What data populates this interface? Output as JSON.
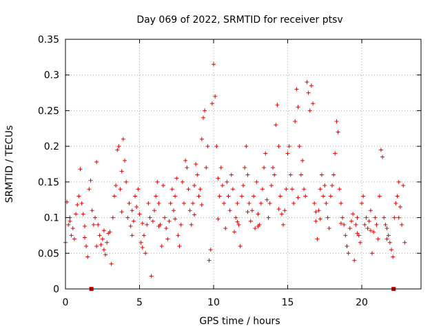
{
  "chart_data": {
    "type": "scatter",
    "title": "Day 069 of 2022, SRMTID for receiver ptsv",
    "xlabel": "GPS time / hours",
    "ylabel": "SRMTID / TECUs",
    "xlim": [
      0,
      24
    ],
    "ylim": [
      0,
      0.35
    ],
    "x_ticks": [
      0,
      5,
      10,
      15,
      20
    ],
    "x_tick_labels": [
      "0",
      "5",
      "10",
      "15",
      "20"
    ],
    "y_ticks": [
      0,
      0.05,
      0.1,
      0.15,
      0.2,
      0.25,
      0.3,
      0.35
    ],
    "y_tick_labels": [
      "0",
      "0.05",
      "0.1",
      "0.15",
      "0.2",
      "0.25",
      "0.3",
      "0.35"
    ],
    "grid": true,
    "marker": "+",
    "color": "#e00000",
    "series": [
      {
        "name": "SRMTID",
        "points": [
          [
            0.0,
            0.065
          ],
          [
            0.1,
            0.122
          ],
          [
            0.2,
            0.09
          ],
          [
            0.3,
            0.1
          ],
          [
            0.4,
            0.075
          ],
          [
            0.5,
            0.085
          ],
          [
            0.6,
            0.07
          ],
          [
            0.7,
            0.105
          ],
          [
            0.8,
            0.118
          ],
          [
            0.9,
            0.13
          ],
          [
            1.0,
            0.168
          ],
          [
            1.1,
            0.12
          ],
          [
            1.2,
            0.105
          ],
          [
            1.3,
            0.088
          ],
          [
            1.4,
            0.06
          ],
          [
            1.5,
            0.045
          ],
          [
            1.6,
            0.14
          ],
          [
            1.7,
            0.152
          ],
          [
            1.8,
            0.11
          ],
          [
            1.9,
            0.09
          ],
          [
            2.0,
            0.1
          ],
          [
            2.1,
            0.178
          ],
          [
            2.2,
            0.09
          ],
          [
            2.3,
            0.075
          ],
          [
            2.4,
            0.062
          ],
          [
            2.5,
            0.07
          ],
          [
            2.6,
            0.055
          ],
          [
            2.7,
            0.048
          ],
          [
            2.8,
            0.065
          ],
          [
            2.9,
            0.078
          ],
          [
            3.0,
            0.08
          ],
          [
            3.1,
            0.035
          ],
          [
            3.2,
            0.1
          ],
          [
            3.3,
            0.13
          ],
          [
            3.4,
            0.145
          ],
          [
            3.5,
            0.195
          ],
          [
            3.6,
            0.2
          ],
          [
            3.7,
            0.14
          ],
          [
            3.8,
            0.165
          ],
          [
            3.9,
            0.21
          ],
          [
            4.0,
            0.18
          ],
          [
            4.1,
            0.15
          ],
          [
            4.2,
            0.1
          ],
          [
            4.3,
            0.12
          ],
          [
            4.4,
            0.088
          ],
          [
            4.5,
            0.11
          ],
          [
            4.6,
            0.095
          ],
          [
            4.7,
            0.13
          ],
          [
            4.8,
            0.115
          ],
          [
            4.9,
            0.14
          ],
          [
            5.0,
            0.105
          ],
          [
            5.1,
            0.065
          ],
          [
            5.2,
            0.058
          ],
          [
            5.3,
            0.075
          ],
          [
            5.4,
            0.05
          ],
          [
            5.5,
            0.09
          ],
          [
            5.6,
            0.12
          ],
          [
            5.7,
            0.1
          ],
          [
            5.8,
            0.018
          ],
          [
            5.9,
            0.095
          ],
          [
            6.0,
            0.11
          ],
          [
            6.1,
            0.13
          ],
          [
            6.2,
            0.15
          ],
          [
            6.3,
            0.12
          ],
          [
            6.4,
            0.09
          ],
          [
            6.5,
            0.06
          ],
          [
            6.6,
            0.145
          ],
          [
            6.7,
            0.1
          ],
          [
            6.8,
            0.085
          ],
          [
            6.9,
            0.07
          ],
          [
            7.0,
            0.095
          ],
          [
            7.1,
            0.12
          ],
          [
            7.2,
            0.14
          ],
          [
            7.3,
            0.11
          ],
          [
            7.4,
            0.13
          ],
          [
            7.5,
            0.155
          ],
          [
            7.6,
            0.075
          ],
          [
            7.7,
            0.06
          ],
          [
            7.8,
            0.09
          ],
          [
            7.9,
            0.15
          ],
          [
            8.0,
            0.12
          ],
          [
            8.1,
            0.18
          ],
          [
            8.2,
            0.17
          ],
          [
            8.3,
            0.14
          ],
          [
            8.4,
            0.11
          ],
          [
            8.5,
            0.09
          ],
          [
            8.6,
            0.12
          ],
          [
            8.7,
            0.145
          ],
          [
            8.8,
            0.175
          ],
          [
            8.9,
            0.16
          ],
          [
            9.0,
            0.13
          ],
          [
            9.1,
            0.14
          ],
          [
            9.2,
            0.21
          ],
          [
            9.3,
            0.24
          ],
          [
            9.4,
            0.25
          ],
          [
            9.5,
            0.17
          ],
          [
            9.6,
            0.2
          ],
          [
            9.7,
            0.04
          ],
          [
            9.8,
            0.055
          ],
          [
            9.9,
            0.26
          ],
          [
            10.0,
            0.315
          ],
          [
            10.1,
            0.27
          ],
          [
            10.2,
            0.2
          ],
          [
            10.3,
            0.155
          ],
          [
            10.4,
            0.13
          ],
          [
            10.5,
            0.17
          ],
          [
            10.6,
            0.145
          ],
          [
            10.7,
            0.12
          ],
          [
            10.8,
            0.085
          ],
          [
            10.9,
            0.15
          ],
          [
            11.0,
            0.13
          ],
          [
            11.1,
            0.11
          ],
          [
            11.2,
            0.16
          ],
          [
            11.3,
            0.14
          ],
          [
            11.4,
            0.08
          ],
          [
            11.5,
            0.1
          ],
          [
            11.6,
            0.12
          ],
          [
            11.7,
            0.09
          ],
          [
            11.8,
            0.06
          ],
          [
            11.9,
            0.13
          ],
          [
            12.0,
            0.145
          ],
          [
            12.1,
            0.17
          ],
          [
            12.2,
            0.2
          ],
          [
            12.3,
            0.16
          ],
          [
            12.4,
            0.12
          ],
          [
            12.5,
            0.095
          ],
          [
            12.6,
            0.11
          ],
          [
            12.7,
            0.13
          ],
          [
            12.8,
            0.085
          ],
          [
            12.9,
            0.15
          ],
          [
            13.0,
            0.105
          ],
          [
            13.1,
            0.09
          ],
          [
            13.2,
            0.12
          ],
          [
            13.3,
            0.14
          ],
          [
            13.4,
            0.17
          ],
          [
            13.5,
            0.19
          ],
          [
            13.6,
            0.125
          ],
          [
            13.7,
            0.1
          ],
          [
            13.8,
            0.12
          ],
          [
            13.9,
            0.145
          ],
          [
            14.0,
            0.17
          ],
          [
            14.1,
            0.16
          ],
          [
            14.2,
            0.23
          ],
          [
            14.3,
            0.258
          ],
          [
            14.4,
            0.2
          ],
          [
            14.5,
            0.13
          ],
          [
            14.6,
            0.105
          ],
          [
            14.7,
            0.09
          ],
          [
            14.8,
            0.11
          ],
          [
            14.9,
            0.14
          ],
          [
            15.0,
            0.19
          ],
          [
            15.1,
            0.2
          ],
          [
            15.2,
            0.16
          ],
          [
            15.3,
            0.14
          ],
          [
            15.4,
            0.12
          ],
          [
            15.5,
            0.235
          ],
          [
            15.6,
            0.28
          ],
          [
            15.7,
            0.255
          ],
          [
            15.8,
            0.2
          ],
          [
            15.9,
            0.16
          ],
          [
            16.0,
            0.18
          ],
          [
            16.1,
            0.14
          ],
          [
            16.2,
            0.13
          ],
          [
            16.3,
            0.29
          ],
          [
            16.4,
            0.275
          ],
          [
            16.5,
            0.25
          ],
          [
            16.6,
            0.285
          ],
          [
            16.7,
            0.26
          ],
          [
            16.8,
            0.12
          ],
          [
            16.9,
            0.095
          ],
          [
            17.0,
            0.07
          ],
          [
            17.1,
            0.11
          ],
          [
            17.2,
            0.14
          ],
          [
            17.3,
            0.16
          ],
          [
            17.4,
            0.13
          ],
          [
            17.5,
            0.145
          ],
          [
            17.6,
            0.12
          ],
          [
            17.7,
            0.1
          ],
          [
            17.8,
            0.085
          ],
          [
            17.9,
            0.13
          ],
          [
            18.0,
            0.145
          ],
          [
            18.1,
            0.16
          ],
          [
            18.2,
            0.19
          ],
          [
            18.3,
            0.235
          ],
          [
            18.4,
            0.22
          ],
          [
            18.5,
            0.14
          ],
          [
            18.6,
            0.12
          ],
          [
            18.7,
            0.1
          ],
          [
            18.8,
            0.09
          ],
          [
            18.9,
            0.075
          ],
          [
            19.0,
            0.06
          ],
          [
            19.1,
            0.05
          ],
          [
            19.2,
            0.085
          ],
          [
            19.3,
            0.095
          ],
          [
            19.4,
            0.105
          ],
          [
            19.5,
            0.04
          ],
          [
            19.6,
            0.09
          ],
          [
            19.7,
            0.1
          ],
          [
            19.8,
            0.075
          ],
          [
            19.9,
            0.065
          ],
          [
            20.0,
            0.12
          ],
          [
            20.1,
            0.13
          ],
          [
            20.2,
            0.09
          ],
          [
            20.3,
            0.1
          ],
          [
            20.4,
            0.085
          ],
          [
            20.5,
            0.095
          ],
          [
            20.6,
            0.11
          ],
          [
            20.7,
            0.05
          ],
          [
            20.8,
            0.08
          ],
          [
            20.9,
            0.1
          ],
          [
            21.0,
            0.09
          ],
          [
            21.1,
            0.07
          ],
          [
            21.2,
            0.13
          ],
          [
            21.3,
            0.195
          ],
          [
            21.4,
            0.185
          ],
          [
            21.5,
            0.1
          ],
          [
            21.6,
            0.09
          ],
          [
            21.7,
            0.085
          ],
          [
            21.8,
            0.075
          ],
          [
            21.9,
            0.065
          ],
          [
            22.0,
            0.055
          ],
          [
            22.1,
            0.045
          ],
          [
            22.2,
            0.1
          ],
          [
            22.3,
            0.12
          ],
          [
            22.4,
            0.13
          ],
          [
            22.5,
            0.15
          ],
          [
            22.6,
            0.115
          ],
          [
            22.7,
            0.09
          ],
          [
            22.8,
            0.145
          ],
          [
            22.9,
            0.065
          ],
          [
            0.3,
            0.095
          ],
          [
            1.3,
            0.072
          ],
          [
            2.6,
            0.082
          ],
          [
            3.8,
            0.108
          ],
          [
            5.2,
            0.092
          ],
          [
            6.3,
            0.088
          ],
          [
            7.4,
            0.098
          ],
          [
            8.7,
            0.104
          ],
          [
            10.3,
            0.098
          ],
          [
            11.6,
            0.094
          ],
          [
            13.0,
            0.088
          ],
          [
            14.4,
            0.112
          ],
          [
            15.7,
            0.128
          ],
          [
            17.2,
            0.098
          ],
          [
            18.6,
            0.092
          ],
          [
            19.7,
            0.078
          ],
          [
            20.6,
            0.082
          ],
          [
            21.7,
            0.07
          ],
          [
            22.5,
            0.1
          ],
          [
            4.5,
            0.075
          ],
          [
            9.2,
            0.118
          ],
          [
            12.3,
            0.108
          ],
          [
            16.9,
            0.108
          ],
          [
            2.1,
            0.06
          ]
        ]
      }
    ],
    "highlight_markers": [
      {
        "x": 1.75,
        "y": 0
      },
      {
        "x": 22.15,
        "y": 0
      }
    ]
  }
}
